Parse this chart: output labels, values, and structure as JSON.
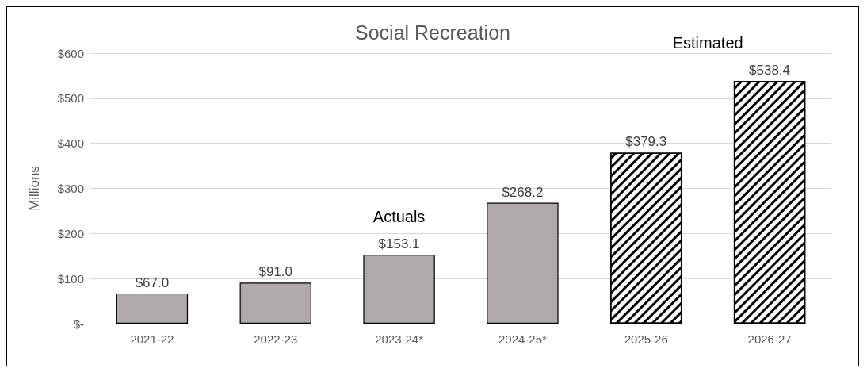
{
  "chart_data": {
    "type": "bar",
    "title": "Social Recreation",
    "ylabel": "Millions",
    "categories": [
      "2021-22",
      "2022-23",
      "2023-24*",
      "2024-25*",
      "2025-26",
      "2026-27"
    ],
    "stacked": true,
    "series": [
      {
        "name": "Actuals",
        "color": "#aeaaaa",
        "values": [
          67.0,
          91.0,
          153.1,
          268.2,
          null,
          null
        ],
        "value_labels": [
          "$67.0",
          "$91.0",
          "$153.1",
          "$268.2",
          null,
          null
        ]
      },
      {
        "name": "Estimated",
        "color": "#000000",
        "values": [
          null,
          null,
          null,
          null,
          379.3,
          538.4
        ],
        "value_labels": [
          null,
          null,
          null,
          null,
          "$379.3",
          "$538.4"
        ]
      }
    ],
    "ylim": [
      0,
      600
    ],
    "yticks": [
      {
        "value": 0,
        "label": "$-"
      },
      {
        "value": 100,
        "label": "$100"
      },
      {
        "value": 200,
        "label": "$200"
      },
      {
        "value": 300,
        "label": "$300"
      },
      {
        "value": 400,
        "label": "$400"
      },
      {
        "value": 500,
        "label": "$500"
      },
      {
        "value": 600,
        "label": "$600"
      }
    ],
    "grid": "y",
    "legend": false
  }
}
